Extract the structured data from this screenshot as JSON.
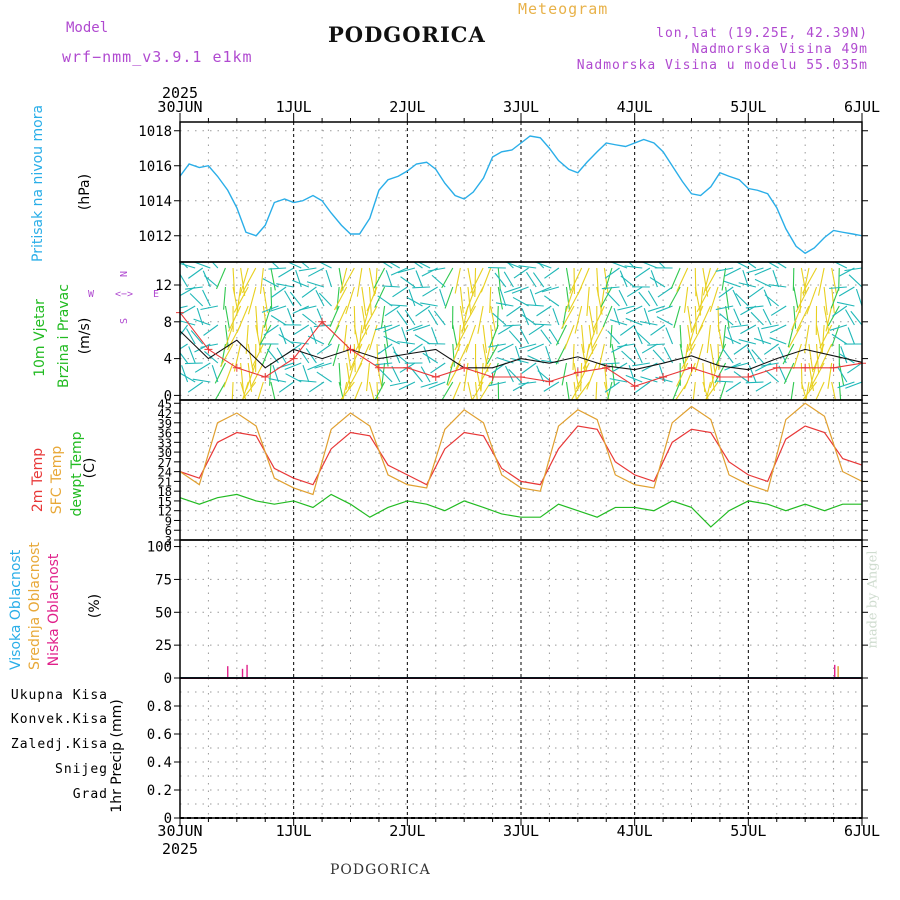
{
  "header": {
    "model_label": "Model",
    "model_name": "wrf−nmm_v3.9.1  e1km",
    "city": "PODGORICA",
    "meteogram": "Meteogram",
    "lonlat": "lon,lat (19.25E, 42.39N)",
    "elevation": "Nadmorska Visina 49m",
    "model_elevation": "Nadmorska Visina u modelu 55.035m"
  },
  "footer": {
    "city": "PODGORICA",
    "credit": "made by Angel"
  },
  "time_axis": {
    "year": "2025",
    "labels": [
      "30JUN",
      "1JUL",
      "2JUL",
      "3JUL",
      "4JUL",
      "5JUL",
      "6JUL"
    ]
  },
  "panels": {
    "pressure": {
      "title": "Pritisak na nivou mora",
      "unit": "(hPa)",
      "color": "#2aaee8"
    },
    "wind": {
      "title1": "10m Vjetar",
      "title2": "Brzina i Pravac",
      "unit": "(m/s)",
      "compass": {
        "n": "N",
        "s": "S",
        "w": "W",
        "e": "E",
        "left": "<−",
        "right": "−>"
      }
    },
    "temp": {
      "t2m": "2m Temp",
      "sfc": "SFC Temp",
      "dew": "dewpt Temp",
      "unit": "(C)"
    },
    "cloud": {
      "high": "Visoka Oblacnost",
      "mid": "Srednja Oblacnost",
      "low": "Niska Oblacnost",
      "unit": "(%)"
    },
    "precip": {
      "legend": [
        "Ukupna  Kisa",
        "Konvek.Kisa",
        "Zaledj.Kisa",
        "Snijeg",
        "Grad"
      ],
      "legend_colors": [
        "#22bb22",
        "#e83838",
        "#f07828",
        "#3838d8",
        "#20b8b8"
      ],
      "unit": "1hr Precip (mm)"
    }
  },
  "chart_data": [
    {
      "type": "line",
      "title": "Pritisak na nivou mora",
      "ylabel": "(hPa)",
      "ylim": [
        1010.5,
        1018.5
      ],
      "yticks": [
        "1012",
        "1014",
        "1016",
        "1018"
      ],
      "x_days": [
        0,
        0.08,
        0.17,
        0.25,
        0.33,
        0.42,
        0.5,
        0.58,
        0.67,
        0.75,
        0.83,
        0.92,
        1.0,
        1.08,
        1.17,
        1.25,
        1.33,
        1.42,
        1.5,
        1.58,
        1.67,
        1.75,
        1.83,
        1.92,
        2.0,
        2.08,
        2.17,
        2.25,
        2.33,
        2.42,
        2.5,
        2.58,
        2.67,
        2.75,
        2.83,
        2.92,
        3.0,
        3.08,
        3.17,
        3.25,
        3.33,
        3.42,
        3.5,
        3.58,
        3.67,
        3.75,
        3.83,
        3.92,
        4.0,
        4.08,
        4.17,
        4.25,
        4.33,
        4.42,
        4.5,
        4.58,
        4.67,
        4.75,
        4.83,
        4.92,
        5.0,
        5.08,
        5.17,
        5.25,
        5.33,
        5.42,
        5.5,
        5.58,
        5.67,
        5.75,
        5.83,
        5.92,
        6.0
      ],
      "series": [
        {
          "values": [
            1015.4,
            1016.1,
            1015.9,
            1016.0,
            1015.4,
            1014.6,
            1013.6,
            1012.2,
            1012.0,
            1012.6,
            1013.9,
            1014.1,
            1013.9,
            1014.0,
            1014.3,
            1014.0,
            1013.3,
            1012.6,
            1012.1,
            1012.1,
            1013.0,
            1014.6,
            1015.2,
            1015.4,
            1015.7,
            1016.1,
            1016.2,
            1015.8,
            1015.0,
            1014.3,
            1014.1,
            1014.5,
            1015.3,
            1016.5,
            1016.8,
            1016.9,
            1017.3,
            1017.7,
            1017.6,
            1017.0,
            1016.3,
            1015.8,
            1015.6,
            1016.2,
            1016.8,
            1017.3,
            1017.2,
            1017.1,
            1017.3,
            1017.5,
            1017.3,
            1016.8,
            1016.0,
            1015.1,
            1014.4,
            1014.3,
            1014.8,
            1015.6,
            1015.4,
            1015.2,
            1014.7,
            1014.6,
            1014.4,
            1013.6,
            1012.4,
            1011.4,
            1011.0,
            1011.3,
            1011.9,
            1012.3,
            1012.2,
            1012.1,
            1012.0
          ]
        }
      ]
    },
    {
      "type": "line",
      "title": "10m Vjetar Brzina i Pravac",
      "ylabel": "(m/s)",
      "ylim": [
        -0.5,
        14.5
      ],
      "yticks": [
        "0",
        "4",
        "8",
        "12"
      ],
      "x_days": [
        0,
        0.25,
        0.5,
        0.75,
        1.0,
        1.25,
        1.5,
        1.75,
        2.0,
        2.25,
        2.5,
        2.75,
        3.0,
        3.25,
        3.5,
        3.75,
        4.0,
        4.25,
        4.5,
        4.75,
        5.0,
        5.25,
        5.5,
        5.75,
        6.0
      ],
      "series": [
        {
          "values": [
            7,
            4,
            6,
            3,
            5,
            4,
            5,
            4,
            4.5,
            5,
            3,
            3,
            4,
            3.5,
            4.2,
            3.2,
            2.8,
            3.5,
            4.3,
            3.2,
            2.8,
            4,
            5,
            4.3,
            3.6
          ]
        },
        {
          "values": [
            9,
            5,
            3,
            2,
            4,
            8,
            5,
            3,
            3,
            2,
            3,
            2,
            2,
            1.5,
            2.5,
            3,
            1,
            2,
            3,
            2,
            2,
            3,
            3,
            3,
            3.5
          ]
        }
      ]
    },
    {
      "type": "line",
      "title": "2m Temp / SFC Temp / dewpt Temp",
      "ylabel": "(C)",
      "ylim": [
        3,
        46
      ],
      "yticks": [
        "3",
        "6",
        "9",
        "12",
        "15",
        "18",
        "21",
        "24",
        "27",
        "30",
        "33",
        "36",
        "39",
        "42",
        "45"
      ],
      "x_days": [
        0,
        0.17,
        0.33,
        0.5,
        0.67,
        0.83,
        1.0,
        1.17,
        1.33,
        1.5,
        1.67,
        1.83,
        2.0,
        2.17,
        2.33,
        2.5,
        2.67,
        2.83,
        3.0,
        3.17,
        3.33,
        3.5,
        3.67,
        3.83,
        4.0,
        4.17,
        4.33,
        4.5,
        4.67,
        4.83,
        5.0,
        5.17,
        5.33,
        5.5,
        5.67,
        5.83,
        6.0
      ],
      "series": [
        {
          "name": "2m Temp",
          "values": [
            24,
            22,
            33,
            36,
            35,
            25,
            22,
            20,
            31,
            36,
            35,
            26,
            23,
            20,
            31,
            36,
            35,
            25,
            21,
            20,
            31,
            38,
            37,
            27,
            23,
            21,
            33,
            37,
            36,
            27,
            23,
            21,
            34,
            38,
            36,
            28,
            26
          ]
        },
        {
          "name": "SFC Temp",
          "values": [
            24,
            20,
            39,
            42,
            38,
            22,
            19,
            17,
            37,
            42,
            38,
            23,
            20,
            19,
            37,
            43,
            39,
            23,
            19,
            18,
            38,
            43,
            40,
            23,
            20,
            19,
            39,
            44,
            40,
            23,
            20,
            18,
            40,
            45,
            41,
            24,
            21
          ]
        },
        {
          "name": "dewpt Temp",
          "values": [
            16,
            14,
            16,
            17,
            15,
            14,
            15,
            13,
            17,
            14,
            10,
            13,
            15,
            14,
            12,
            15,
            13,
            11,
            10,
            10,
            14,
            12,
            10,
            13,
            13,
            12,
            15,
            13,
            7,
            12,
            15,
            14,
            12,
            14,
            12,
            14,
            14
          ]
        }
      ]
    },
    {
      "type": "bar",
      "title": "Visoka / Srednja / Niska Oblacnost",
      "ylabel": "(%)",
      "ylim": [
        0,
        105
      ],
      "yticks": [
        "0",
        "25",
        "50",
        "75",
        "100"
      ],
      "series": [
        {
          "name": "Niska Oblacnost",
          "x_days": [
            0.42,
            0.55,
            0.59,
            5.76
          ],
          "values": [
            9,
            7,
            10,
            10
          ]
        },
        {
          "name": "Srednja Oblacnost",
          "x_days": [
            5.79
          ],
          "values": [
            9
          ]
        }
      ]
    },
    {
      "type": "bar",
      "title": "1hr Precip",
      "ylabel": "1hr Precip (mm)",
      "ylim": [
        0,
        1.0
      ],
      "yticks": [
        "0",
        "0.2",
        "0.4",
        "0.6",
        "0.8"
      ],
      "series": []
    }
  ]
}
